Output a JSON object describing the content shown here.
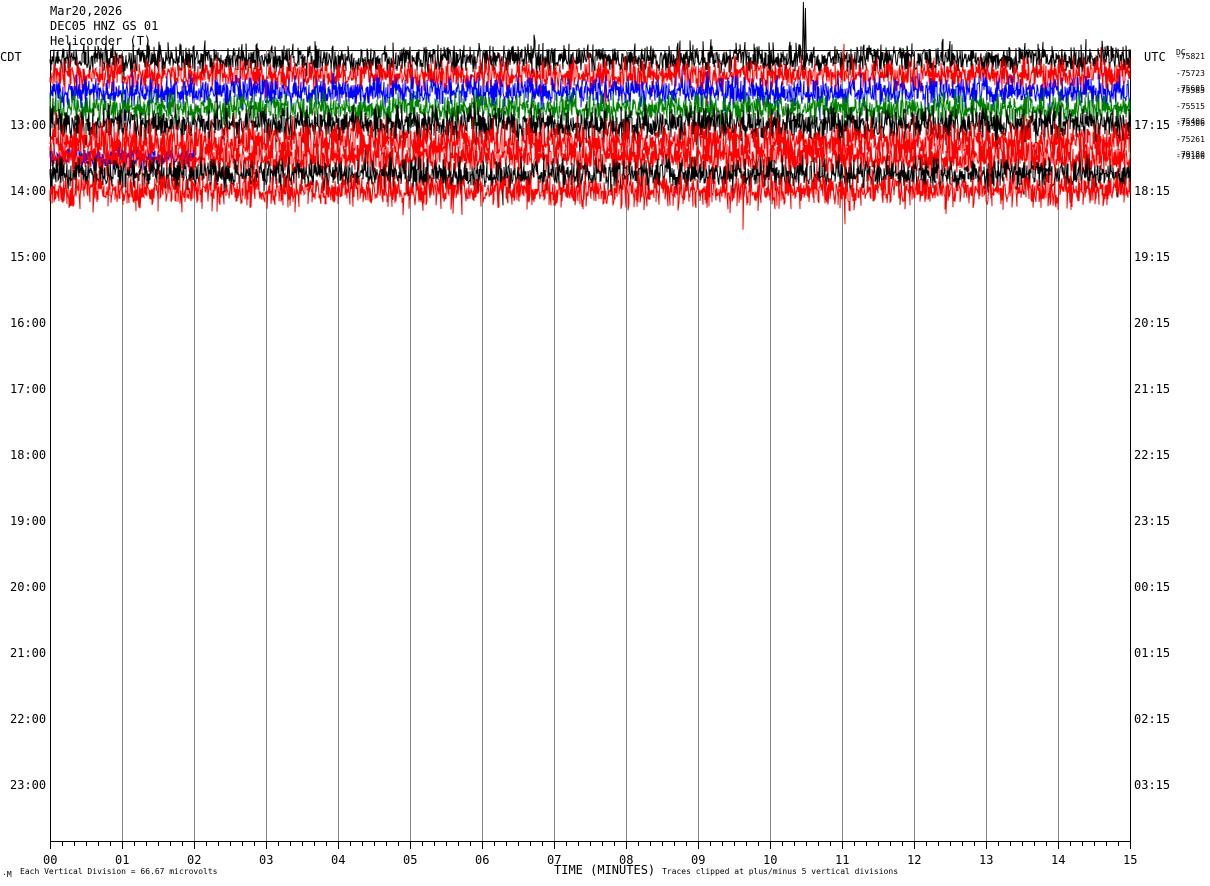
{
  "header": {
    "date": "Mar20,2026",
    "station": "DEC05 HNZ GS 01",
    "overlap_text": "Helicorder (T)"
  },
  "left_tz": "CDT",
  "right_tz": "UTC",
  "footer": {
    "mark": "·M",
    "division": "Each Vertical Division =   66.67 microvolts",
    "xlabel": "TIME (MINUTES)",
    "clip": "Traces clipped at plus/minus 5 vertical divisions"
  },
  "chart_data": {
    "type": "line",
    "title": "DEC05 HNZ GS 01",
    "xlabel": "TIME (MINUTES)",
    "xlim": [
      0,
      15
    ],
    "x_ticks": [
      "00",
      "01",
      "02",
      "03",
      "04",
      "05",
      "06",
      "07",
      "08",
      "09",
      "10",
      "11",
      "12",
      "13",
      "14",
      "15"
    ],
    "grid_vertical": true,
    "left_labels": [
      "13:00",
      "14:00",
      "15:00",
      "16:00",
      "17:00",
      "18:00",
      "19:00",
      "20:00",
      "21:00",
      "22:00",
      "23:00"
    ],
    "right_labels": [
      "17:15",
      "18:15",
      "19:15",
      "20:15",
      "21:15",
      "22:15",
      "23:15",
      "00:15",
      "01:15",
      "02:15",
      "03:15"
    ],
    "trace_colors": [
      "#000000",
      "#ff0000",
      "#0000ff",
      "#008000"
    ],
    "right_values": [
      "DC",
      "-75821",
      "-75723",
      "-75605",
      "-75585",
      "-75515",
      "-75406",
      "-75306",
      "-75261",
      "-79180",
      "-79106"
    ],
    "traces": [
      {
        "row": 0,
        "color": "#000000",
        "amplitude": 22
      },
      {
        "row": 1,
        "color": "#ff0000",
        "amplitude": 24
      },
      {
        "row": 2,
        "color": "#0000ff",
        "amplitude": 22
      },
      {
        "row": 3,
        "color": "#008000",
        "amplitude": 22
      },
      {
        "row": 4,
        "color": "#000000",
        "amplitude": 26
      },
      {
        "row": 5,
        "color": "#ff0000",
        "amplitude": 30
      },
      {
        "row": 6,
        "color": "#0000ff",
        "amplitude": 14,
        "end_minute": 2
      },
      {
        "row": 6,
        "color": "#ff0000",
        "amplitude": 28
      },
      {
        "row": 7,
        "color": "#000000",
        "amplitude": 24
      },
      {
        "row": 8,
        "color": "#ff0000",
        "amplitude": 26
      }
    ]
  }
}
